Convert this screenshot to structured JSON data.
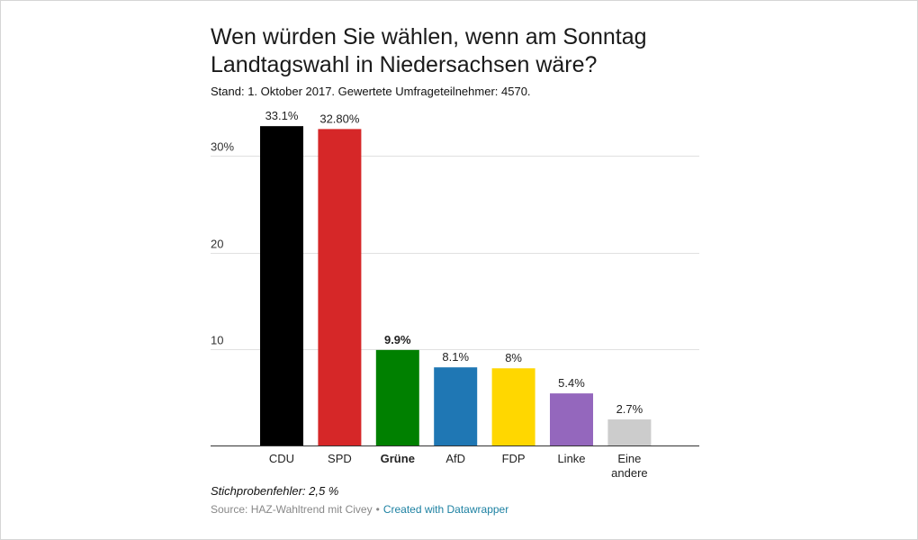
{
  "chart_data": {
    "type": "bar",
    "title": "Wen würden Sie wählen, wenn am Sonntag Landtagswahl in Niedersachsen wäre?",
    "subtitle": "Stand: 1. Oktober 2017. Gewertete Umfrageteilnehmer: 4570.",
    "categories": [
      "CDU",
      "SPD",
      "Grüne",
      "AfD",
      "FDP",
      "Linke",
      "Eine andere"
    ],
    "values": [
      33.1,
      32.8,
      9.9,
      8.1,
      8.0,
      5.4,
      2.7
    ],
    "value_labels": [
      "33.1%",
      "32.80%",
      "9.9%",
      "8.1%",
      "8%",
      "5.4%",
      "2.7%"
    ],
    "colors": [
      "#000000",
      "#d62728",
      "#008000",
      "#1f77b4",
      "#ffd700",
      "#9467bd",
      "#cccccc"
    ],
    "highlight": "Grüne",
    "y_ticks": [
      10,
      20,
      30
    ],
    "y_tick_labels": [
      "10",
      "20",
      "30%"
    ],
    "ylim": [
      0,
      33.1
    ],
    "xlabel": "",
    "ylabel": "",
    "grid": true
  },
  "notes": "Stichprobenfehler: 2,5 %",
  "footer": {
    "source": "Source: HAZ-Wahltrend mit Civey",
    "separator": "•",
    "credit": "Created with Datawrapper"
  }
}
